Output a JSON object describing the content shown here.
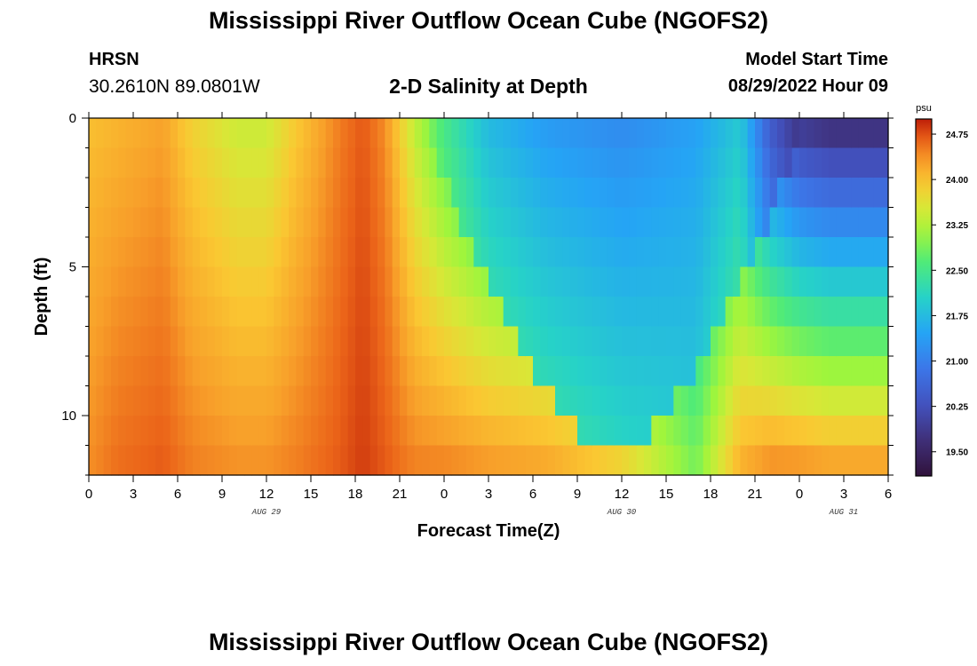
{
  "header": {
    "title": "Mississippi River Outflow Ocean Cube (NGOFS2)",
    "station_name": "HRSN",
    "station_coords": "30.2610N  89.0801W",
    "plot_title": "2-D Salinity at Depth",
    "model_label": "Model Start Time",
    "model_time": "08/29/2022 Hour 09"
  },
  "footer": {
    "title": "Mississippi River Outflow Ocean Cube (NGOFS2)"
  },
  "chart_data": {
    "type": "heatmap",
    "title": "2-D Salinity at Depth",
    "xlabel": "Forecast Time(Z)",
    "ylabel": "Depth (ft)",
    "x_tick_labels": [
      "0",
      "3",
      "6",
      "9",
      "12",
      "15",
      "18",
      "21",
      "0",
      "3",
      "6",
      "9",
      "12",
      "15",
      "18",
      "21",
      "0",
      "3",
      "6"
    ],
    "x_range_hours": [
      0,
      54
    ],
    "date_labels": [
      {
        "text": "AUG 29",
        "hour": 12
      },
      {
        "text": "AUG 30",
        "hour": 36
      },
      {
        "text": "AUG 31",
        "hour": 51
      }
    ],
    "y_ticks": [
      0,
      5,
      10
    ],
    "y_range_ft": [
      0,
      12
    ],
    "colorbar": {
      "unit": "psu",
      "min": 19.1,
      "max": 25.0,
      "ticks": [
        24.75,
        24.0,
        23.25,
        22.5,
        21.75,
        21.0,
        20.25,
        19.5
      ],
      "tick_labels": [
        "24.75",
        "24.00",
        "23.25",
        "22.50",
        "21.75",
        "21.00",
        "20.25",
        "19.50"
      ]
    },
    "depth_levels_ft": [
      0,
      1,
      2,
      3,
      4,
      5,
      6,
      7,
      8,
      9,
      10,
      11,
      12
    ],
    "salinity_profile_hours": [
      0,
      2,
      5,
      7,
      10,
      12,
      14,
      17,
      18.5,
      20,
      22,
      24,
      27,
      31,
      36,
      41,
      44,
      46,
      48,
      50,
      54
    ],
    "salinity_surface_psu": [
      24.0,
      24.1,
      24.25,
      23.8,
      23.4,
      23.4,
      23.9,
      24.5,
      24.7,
      24.4,
      23.3,
      22.5,
      21.7,
      21.3,
      21.1,
      21.4,
      21.9,
      20.4,
      19.7,
      19.5,
      19.5
    ],
    "salinity_bottom_psu": [
      24.4,
      24.6,
      24.7,
      24.5,
      24.4,
      24.4,
      24.5,
      24.7,
      24.85,
      24.7,
      24.5,
      24.5,
      24.4,
      24.3,
      23.9,
      22.9,
      24.2,
      24.5,
      24.5,
      24.4,
      24.4
    ],
    "trough_center_hour": 35.5,
    "trough_bottom_depth_ft": 11.3
  }
}
